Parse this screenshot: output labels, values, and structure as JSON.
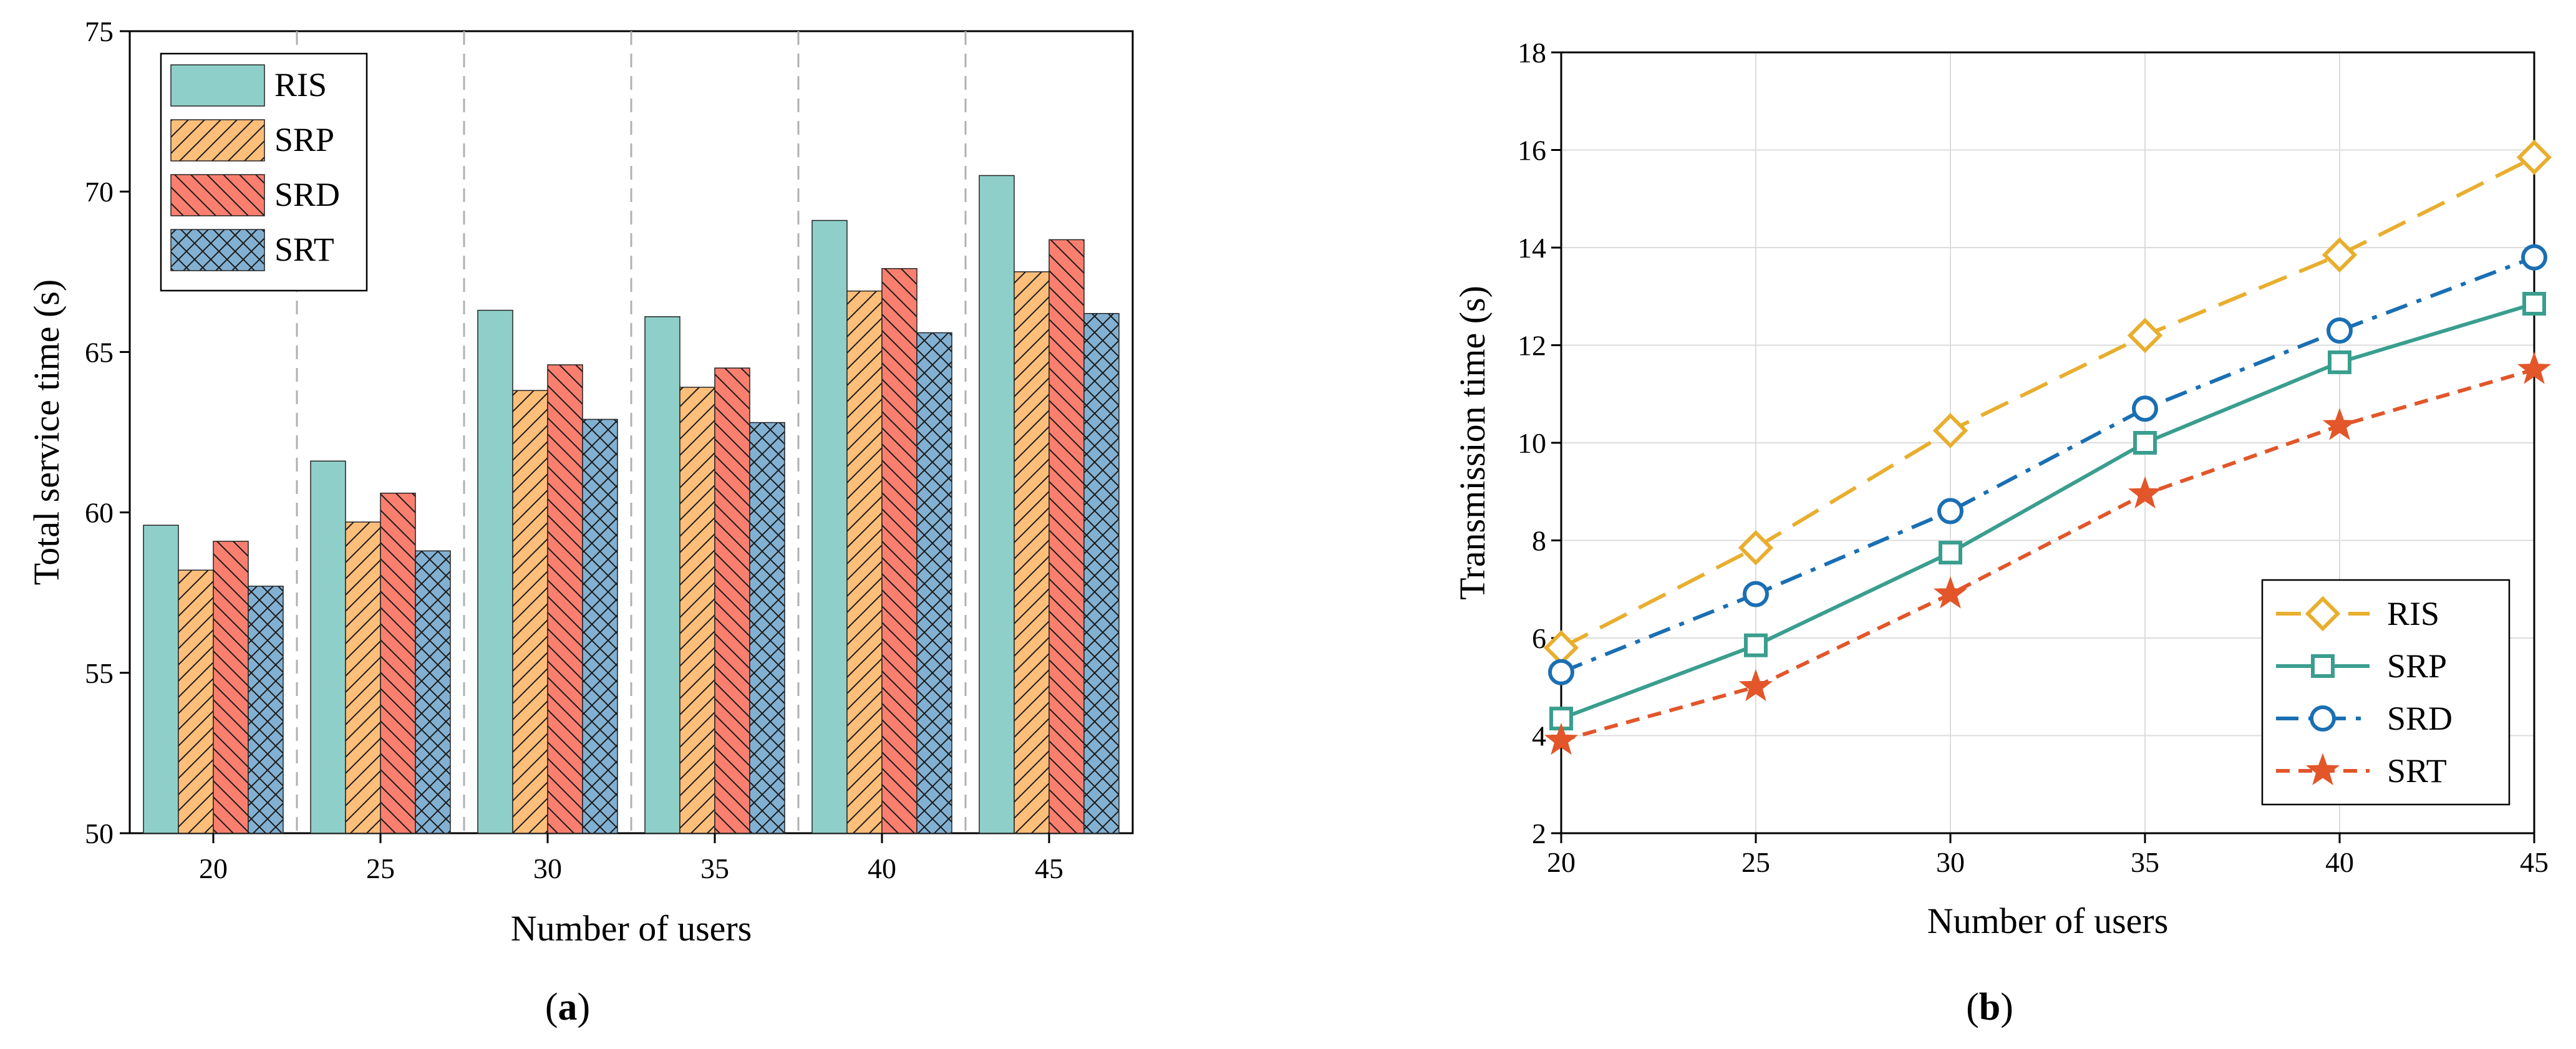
{
  "chart_data": [
    {
      "type": "bar",
      "panel_label": {
        "open": "(",
        "letter": "a",
        "close": ")"
      },
      "xlabel": "Number of users",
      "ylabel": "Total service time (s)",
      "ylim": [
        50,
        75
      ],
      "yticks": [
        50,
        55,
        60,
        65,
        70,
        75
      ],
      "categories": [
        "20",
        "25",
        "30",
        "35",
        "40",
        "45"
      ],
      "grid": "dashed vertical separators between groups",
      "legend_position": "top-left",
      "series": [
        {
          "name": "RIS",
          "color": "#8ECFC9",
          "pattern": "none",
          "values": [
            59.6,
            61.6,
            66.3,
            66.1,
            69.1,
            70.5
          ]
        },
        {
          "name": "SRP",
          "color": "#FFBE7A",
          "pattern": "hatch-up",
          "values": [
            58.2,
            59.7,
            63.8,
            63.9,
            66.9,
            67.5
          ]
        },
        {
          "name": "SRD",
          "color": "#FA7F6F",
          "pattern": "hatch-down",
          "values": [
            59.1,
            60.6,
            64.6,
            64.5,
            67.6,
            68.5
          ]
        },
        {
          "name": "SRT",
          "color": "#82B0D2",
          "pattern": "crosshatch",
          "values": [
            57.7,
            58.8,
            62.9,
            62.8,
            65.6,
            66.2
          ]
        }
      ]
    },
    {
      "type": "line",
      "panel_label": {
        "open": "(",
        "letter": "b",
        "close": ")"
      },
      "xlabel": "Number of users",
      "ylabel": "Transmission time (s)",
      "xlim": [
        20,
        45
      ],
      "ylim": [
        2,
        18
      ],
      "x": [
        20,
        25,
        30,
        35,
        40,
        45
      ],
      "yticks": [
        2,
        4,
        6,
        8,
        10,
        12,
        14,
        16,
        18
      ],
      "grid": true,
      "legend_position": "bottom-right",
      "series": [
        {
          "name": "RIS",
          "color": "#E8AE2E",
          "marker": "diamond",
          "line_style": "dashed",
          "values": [
            5.8,
            7.85,
            10.25,
            12.2,
            13.85,
            15.85
          ]
        },
        {
          "name": "SRP",
          "color": "#3A9E8E",
          "marker": "square",
          "line_style": "solid",
          "values": [
            4.35,
            5.85,
            7.75,
            10.0,
            11.65,
            12.85
          ]
        },
        {
          "name": "SRD",
          "color": "#1A6FB3",
          "marker": "circle",
          "line_style": "dashdot",
          "values": [
            5.3,
            6.9,
            8.6,
            10.7,
            12.3,
            13.8
          ]
        },
        {
          "name": "SRT",
          "color": "#E2562A",
          "marker": "star",
          "line_style": "dashed-short",
          "values": [
            3.9,
            5.0,
            6.9,
            8.95,
            10.35,
            11.5
          ]
        }
      ]
    }
  ]
}
